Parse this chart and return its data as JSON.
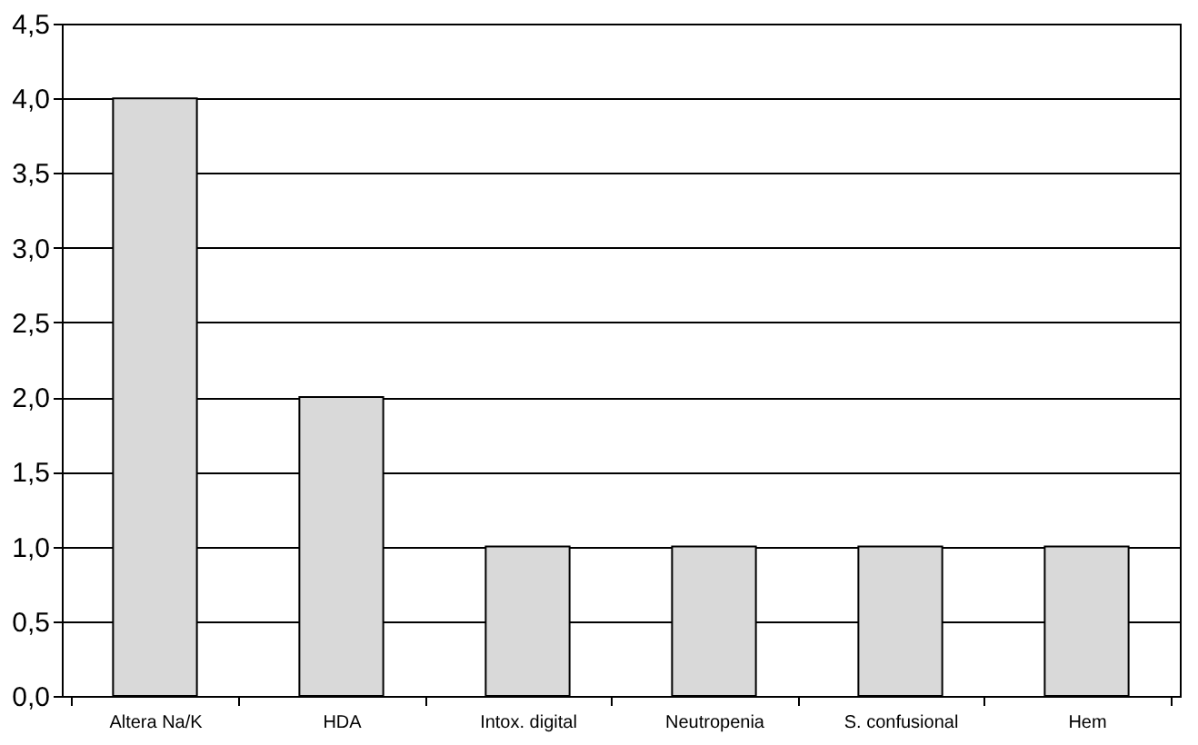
{
  "chart_data": {
    "type": "bar",
    "categories": [
      "Altera Na/K",
      "HDA",
      "Intox. digital",
      "Neutropenia",
      "S. confusional",
      "Hem"
    ],
    "values": [
      4,
      2,
      1,
      1,
      1,
      1
    ],
    "color": "#d9d9d9",
    "ylim": [
      0,
      4.5
    ],
    "yticks": [
      {
        "value": 0,
        "label": "0,0"
      },
      {
        "value": 0.5,
        "label": "0,5"
      },
      {
        "value": 1,
        "label": "1,0"
      },
      {
        "value": 1.5,
        "label": "1,5"
      },
      {
        "value": 2,
        "label": "2,0"
      },
      {
        "value": 2.5,
        "label": "2,5"
      },
      {
        "value": 3,
        "label": "3,0"
      },
      {
        "value": 3.5,
        "label": "3,5"
      },
      {
        "value": 4,
        "label": "4,0"
      },
      {
        "value": 4.5,
        "label": "4,5"
      }
    ],
    "grid": "y"
  }
}
